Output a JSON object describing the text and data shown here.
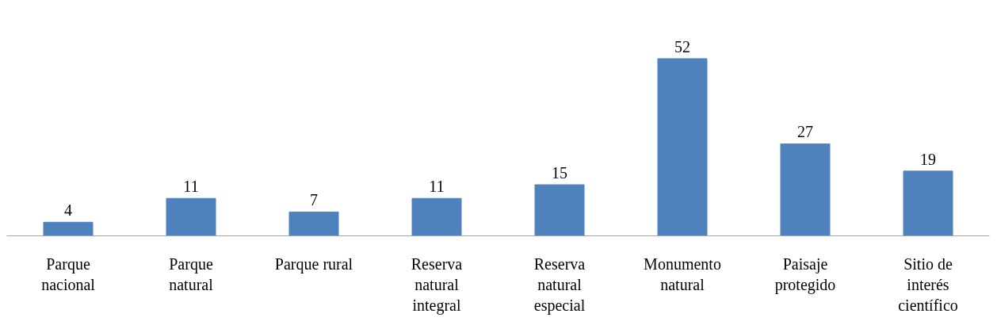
{
  "chart_data": {
    "type": "bar",
    "categories": [
      "Parque nacional",
      "Parque natural",
      "Parque rural",
      "Reserva natural integral",
      "Reserva natural especial",
      "Monumento natural",
      "Paisaje protegido",
      "Sitio de interés científico"
    ],
    "values": [
      4,
      11,
      7,
      11,
      15,
      52,
      27,
      19
    ],
    "color": "#4f81bd",
    "data_labels": true
  }
}
